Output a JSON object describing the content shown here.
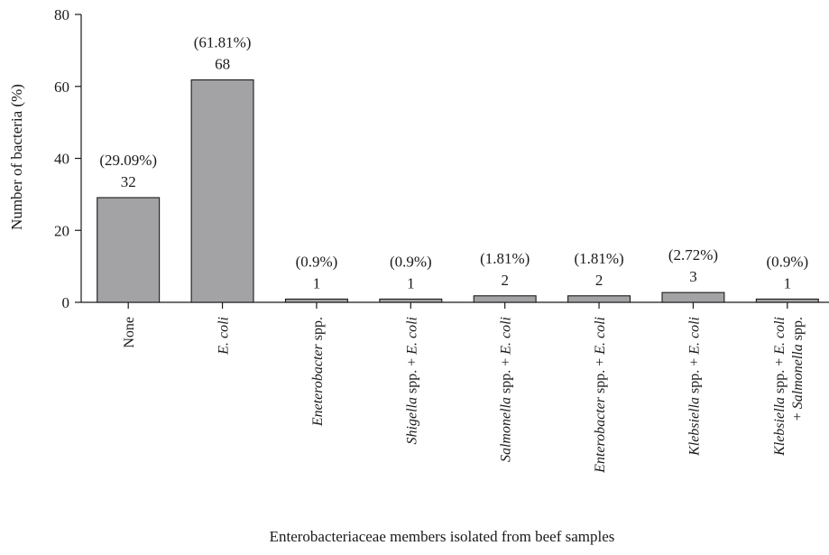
{
  "chart_data": {
    "type": "bar",
    "title": "",
    "xlabel": "Enterobacteriaceae members isolated from beef samples",
    "ylabel": "Number of bacteria (%)",
    "ylim": [
      0,
      80
    ],
    "yticks": [
      0,
      20,
      40,
      60,
      80
    ],
    "grid": false,
    "legend": "none",
    "bar_color": "#a3a3a6",
    "categories": [
      [
        {
          "t": "None",
          "i": false
        }
      ],
      [
        {
          "t": "E. coli",
          "i": true
        }
      ],
      [
        {
          "t": "Eneterobacter",
          "i": true
        },
        {
          "t": " spp.",
          "i": false
        }
      ],
      [
        {
          "t": "Shigella",
          "i": true
        },
        {
          "t": " spp. + ",
          "i": false
        },
        {
          "t": "E. coli",
          "i": true
        }
      ],
      [
        {
          "t": "Salmonella",
          "i": true
        },
        {
          "t": " spp. + ",
          "i": false
        },
        {
          "t": "E. coli",
          "i": true
        }
      ],
      [
        {
          "t": "Enterobacter",
          "i": true
        },
        {
          "t": " spp. + ",
          "i": false
        },
        {
          "t": "E. coli",
          "i": true
        }
      ],
      [
        {
          "t": "Klebsiella",
          "i": true
        },
        {
          "t": " spp. + ",
          "i": false
        },
        {
          "t": "E. coli",
          "i": true
        }
      ],
      [
        {
          "t": "Klebsiella",
          "i": true
        },
        {
          "t": " spp. + ",
          "i": false
        },
        {
          "t": "E. coli",
          "i": true
        },
        {
          "t": "|",
          "i": false
        },
        {
          "t": "+ ",
          "i": false
        },
        {
          "t": "Salmonella",
          "i": true
        },
        {
          "t": " spp.",
          "i": false
        }
      ]
    ],
    "values": [
      29.09,
      61.81,
      0.9,
      0.9,
      1.81,
      1.81,
      2.72,
      0.9
    ],
    "percent_labels": [
      "(29.09%)",
      "(61.81%)",
      "(0.9%)",
      "(0.9%)",
      "(1.81%)",
      "(1.81%)",
      "(2.72%)",
      "(0.9%)"
    ],
    "count_labels": [
      "32",
      "68",
      "1",
      "1",
      "2",
      "2",
      "3",
      "1"
    ]
  }
}
